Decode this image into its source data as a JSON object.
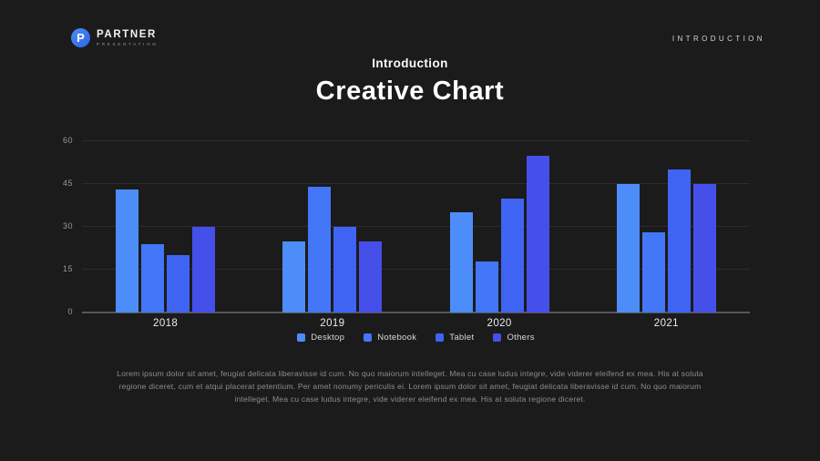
{
  "page": {
    "background": "#1b1b1b"
  },
  "header": {
    "logo": {
      "letter": "P",
      "brand": "PARTNER",
      "tagline": "PRESENTATION",
      "icon_color": "#3b7cf2"
    },
    "section_label": "INTRODUCTION"
  },
  "title": {
    "subtitle": "Introduction",
    "heading": "Creative Chart"
  },
  "chart_data": {
    "type": "bar",
    "title": "Creative Chart",
    "categories": [
      "2018",
      "2019",
      "2020",
      "2021"
    ],
    "series": [
      {
        "name": "Desktop",
        "color": "#4d8dfa",
        "values": [
          43,
          25,
          35,
          45
        ]
      },
      {
        "name": "Notebook",
        "color": "#4377f7",
        "values": [
          24,
          44,
          18,
          28
        ]
      },
      {
        "name": "Tablet",
        "color": "#3f64f3",
        "values": [
          20,
          30,
          40,
          50
        ]
      },
      {
        "name": "Others",
        "color": "#4550ea",
        "values": [
          30,
          25,
          55,
          45
        ]
      }
    ],
    "xlabel": "",
    "ylabel": "",
    "ylim": [
      0,
      60
    ],
    "yticks": [
      0,
      15,
      30,
      45,
      60
    ],
    "grid": true,
    "legend_position": "bottom",
    "axis_text_color": "#989898",
    "category_text_color": "#ececec"
  },
  "footer": {
    "paragraph": "Lorem ipsum dolor sit amet, feugiat delicata liberavisse id cum. No quo maiorum intelleget. Mea cu case ludus integre, vide viderer eleifend ex mea. His at soluta regione diceret, cum et atqui placerat petentium. Per amet nonumy periculis ei. Lorem ipsum dolor sit amet, feugiat delicata liberavisse id cum. No quo maiorum intelleget. Mea cu case ludus integre, vide viderer eleifend ex mea. His at soluta regione diceret."
  }
}
